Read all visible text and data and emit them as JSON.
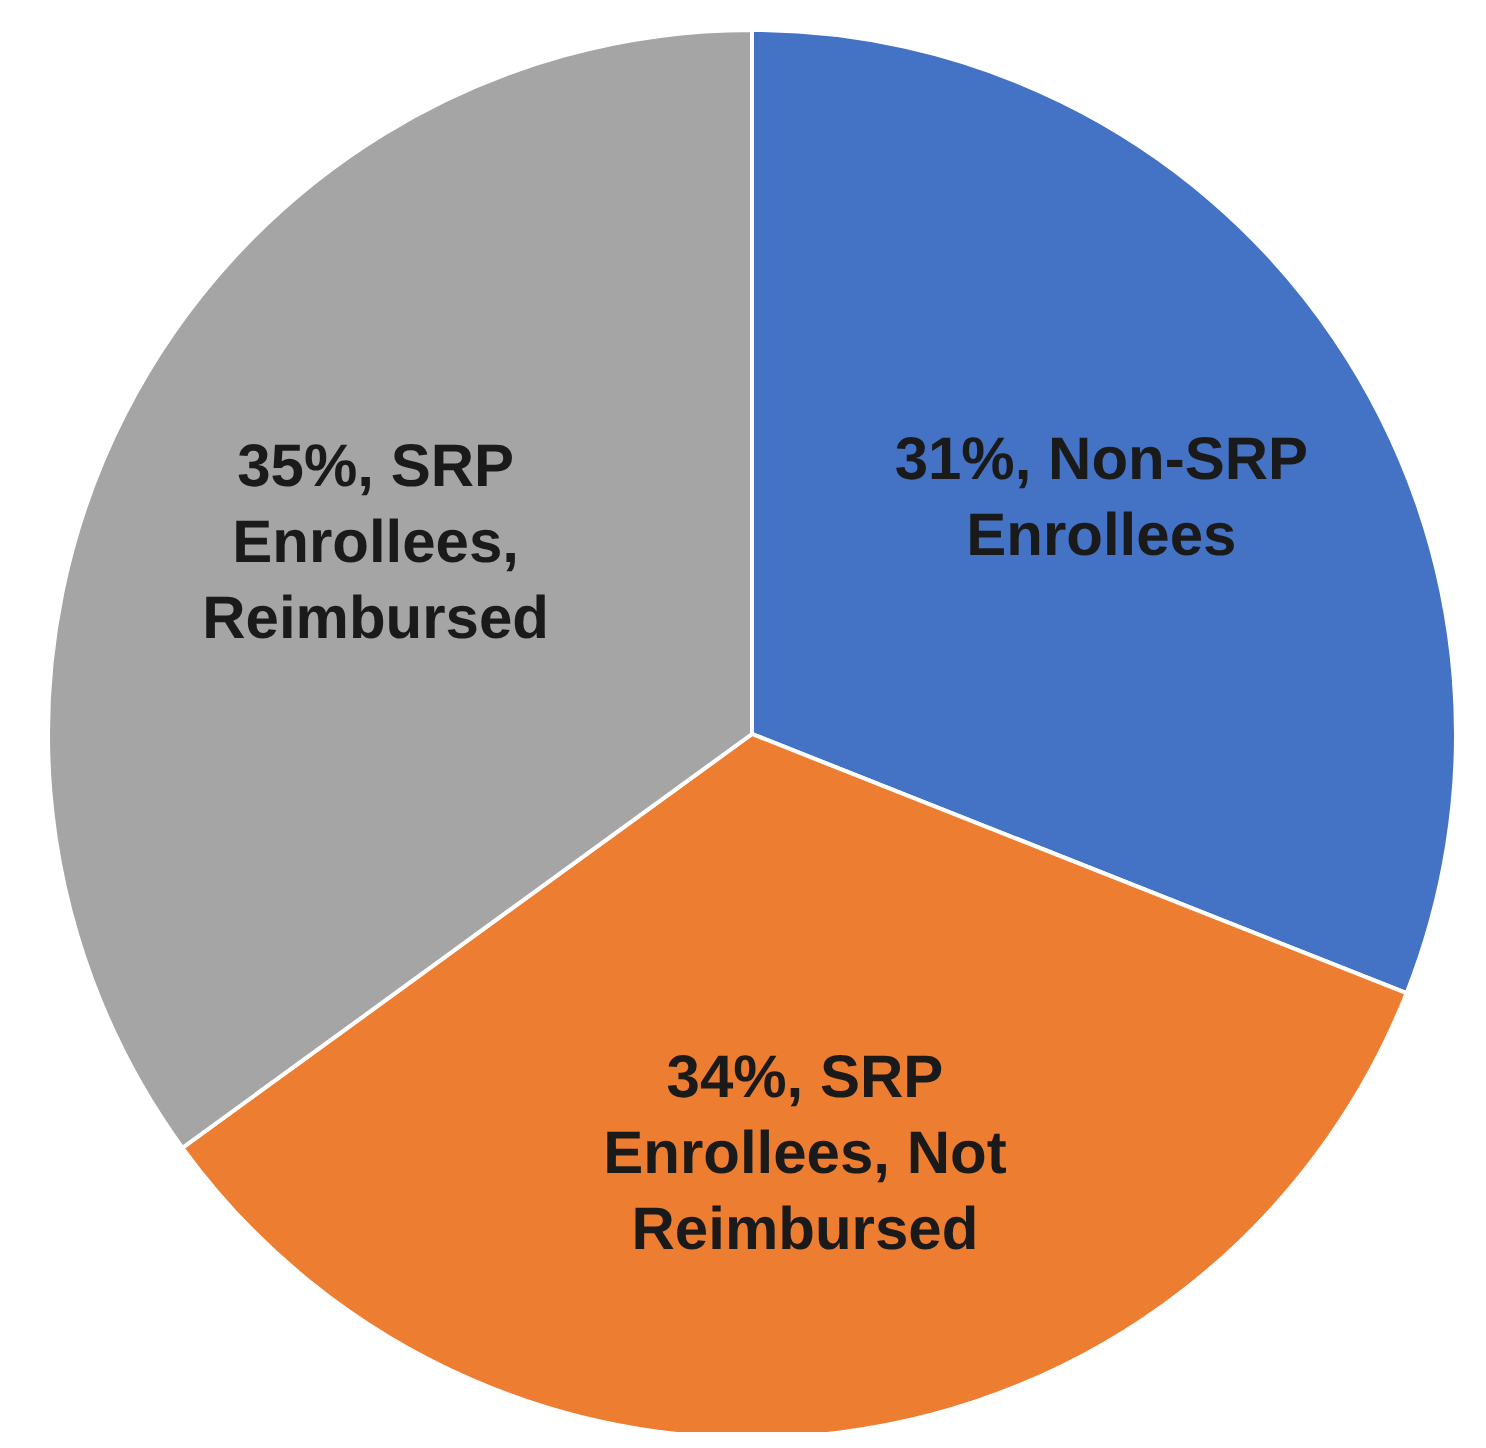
{
  "chart_data": {
    "type": "pie",
    "categories": [
      "Non-SRP Enrollees",
      "SRP Enrollees, Not Reimbursed",
      "SRP Enrollees, Reimbursed"
    ],
    "values": [
      31,
      34,
      35
    ],
    "value_labels": [
      "31%",
      "34%",
      "35%"
    ],
    "colors": [
      "#4472c4",
      "#ed7d31",
      "#a5a5a5"
    ],
    "legend": false
  }
}
